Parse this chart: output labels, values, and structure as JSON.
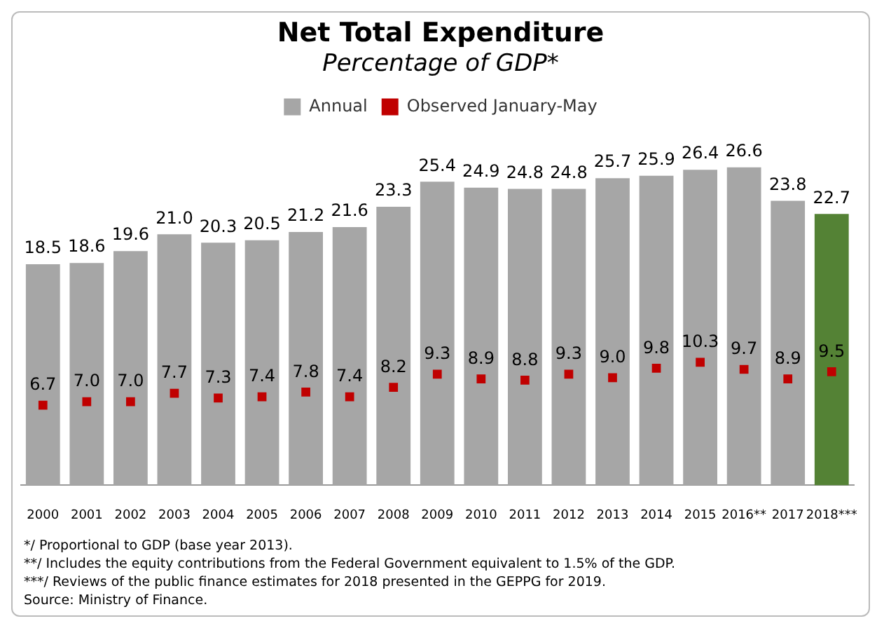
{
  "chart_data": {
    "type": "bar",
    "title": "Net Total Expenditure",
    "subtitle": "Percentage of GDP*",
    "categories": [
      "2000",
      "2001",
      "2002",
      "2003",
      "2004",
      "2005",
      "2006",
      "2007",
      "2008",
      "2009",
      "2010",
      "2011",
      "2012",
      "2013",
      "2014",
      "2015",
      "2016**",
      "2017",
      "2018***"
    ],
    "series": [
      {
        "name": "Annual",
        "color": "#a6a6a6",
        "colors": [
          "#a6a6a6",
          "#a6a6a6",
          "#a6a6a6",
          "#a6a6a6",
          "#a6a6a6",
          "#a6a6a6",
          "#a6a6a6",
          "#a6a6a6",
          "#a6a6a6",
          "#a6a6a6",
          "#a6a6a6",
          "#a6a6a6",
          "#a6a6a6",
          "#a6a6a6",
          "#a6a6a6",
          "#a6a6a6",
          "#a6a6a6",
          "#a6a6a6",
          "#548235"
        ],
        "values": [
          18.5,
          18.6,
          19.6,
          21.0,
          20.3,
          20.5,
          21.2,
          21.6,
          23.3,
          25.4,
          24.9,
          24.8,
          24.8,
          25.7,
          25.9,
          26.4,
          26.6,
          23.8,
          22.7
        ],
        "value_labels": [
          "18.5",
          "18.6",
          "19.6",
          "21.0",
          "20.3",
          "20.5",
          "21.2",
          "21.6",
          "23.3",
          "25.4",
          "24.9",
          "24.8",
          "24.8",
          "25.7",
          "25.9",
          "26.4",
          "26.6",
          "23.8",
          "22.7"
        ]
      },
      {
        "name": "Observed January-May",
        "type": "scatter",
        "color": "#c00000",
        "values": [
          6.7,
          7.0,
          7.0,
          7.7,
          7.3,
          7.4,
          7.8,
          7.4,
          8.2,
          9.3,
          8.9,
          8.8,
          9.3,
          9.0,
          9.8,
          10.3,
          9.7,
          8.9,
          9.5
        ],
        "value_labels": [
          "6.7",
          "7.0",
          "7.0",
          "7.7",
          "7.3",
          "7.4",
          "7.8",
          "7.4",
          "8.2",
          "9.3",
          "8.9",
          "8.8",
          "9.3",
          "9.0",
          "9.8",
          "10.3",
          "9.7",
          "8.9",
          "9.5"
        ]
      }
    ],
    "legend": "top",
    "grid": false,
    "marker": "square",
    "annotations": [
      "*/ Proportional to GDP (base year 2013).",
      "**/ Includes the equity contributions from the Federal Government equivalent to 1.5% of the GDP.",
      "***/ Reviews of the public finance estimates for 2018 presented in the GEPPG for 2019.",
      "Source: Ministry of Finance."
    ]
  }
}
